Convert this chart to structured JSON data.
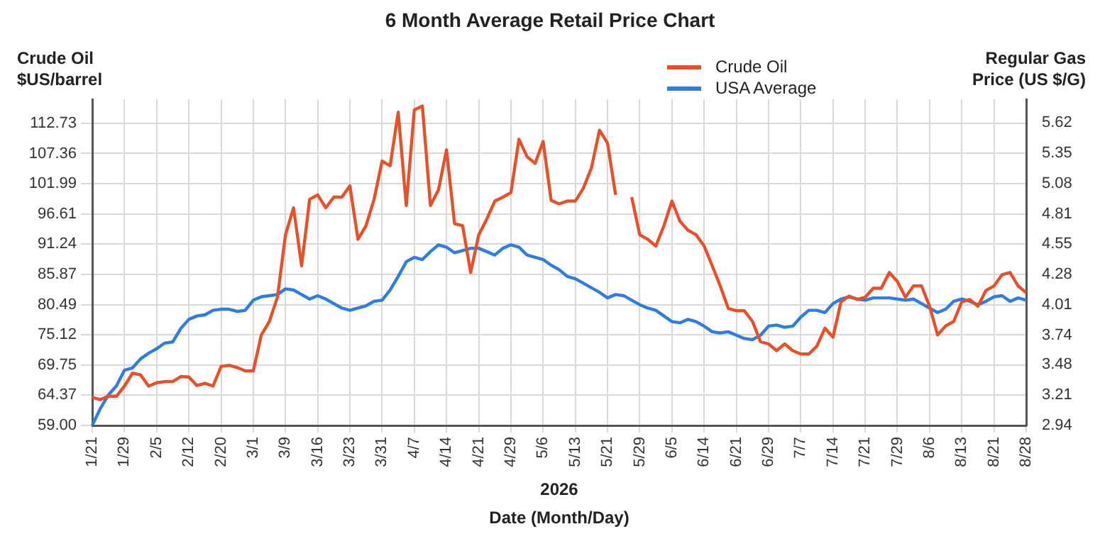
{
  "chart_data": {
    "type": "line",
    "title": "6 Month Average Retail Price Chart",
    "xlabel": "Date (Month/Day)",
    "ylabel": "Crude Oil $US/barrel",
    "y2label": "Regular Gas Price (US $/G)",
    "annotations": [
      "2026"
    ],
    "categories": [
      "1/21",
      null,
      null,
      null,
      "1/29",
      null,
      null,
      null,
      "2/5",
      null,
      null,
      null,
      "2/12",
      null,
      null,
      null,
      "2/20",
      null,
      null,
      null,
      "3/1",
      null,
      null,
      null,
      "3/9",
      null,
      null,
      null,
      "3/16",
      null,
      null,
      null,
      "3/23",
      null,
      null,
      null,
      "3/31",
      null,
      null,
      null,
      "4/7",
      null,
      null,
      null,
      "4/14",
      null,
      null,
      null,
      "4/21",
      null,
      null,
      null,
      "4/29",
      null,
      null,
      null,
      "5/6",
      null,
      null,
      null,
      "5/13",
      null,
      null,
      null,
      "5/21",
      null,
      null,
      null,
      "5/29",
      null,
      null,
      null,
      "6/5",
      null,
      null,
      null,
      "6/14",
      null,
      null,
      null,
      "6/21",
      null,
      null,
      null,
      "6/29",
      null,
      null,
      null,
      "7/7",
      null,
      null,
      null,
      "7/14",
      null,
      null,
      null,
      "7/21",
      null,
      null,
      null,
      "7/29",
      null,
      null,
      null,
      "8/6",
      null,
      null,
      null,
      "8/13",
      null,
      null,
      null,
      "8/21",
      null,
      null,
      null,
      "8/28"
    ],
    "series": [
      {
        "name": "Crude Oil",
        "color": "#e8502a",
        "axis": "y",
        "values": [
          64.0,
          63.6,
          64.2,
          64.2,
          66.0,
          68.3,
          68.0,
          66.0,
          66.6,
          66.8,
          66.8,
          67.7,
          67.6,
          66.1,
          66.5,
          66.0,
          69.5,
          69.7,
          69.3,
          68.7,
          68.7,
          75.1,
          77.5,
          81.8,
          92.9,
          97.7,
          87.4,
          99.2,
          100.0,
          97.7,
          99.6,
          99.6,
          101.6,
          92.1,
          94.5,
          99.2,
          106.0,
          105.2,
          114.7,
          98.1,
          115.1,
          115.8,
          98.1,
          100.9,
          108.0,
          94.9,
          94.5,
          86.2,
          92.9,
          95.7,
          98.9,
          99.6,
          100.4,
          109.9,
          106.8,
          105.6,
          109.5,
          99.0,
          98.4,
          98.9,
          98.9,
          101.2,
          104.8,
          111.5,
          109.2,
          100.0,
          null,
          99.6,
          92.9,
          92.1,
          90.9,
          94.5,
          98.9,
          95.3,
          93.7,
          92.9,
          90.9,
          87.4,
          83.8,
          79.8,
          79.4,
          79.4,
          77.5,
          73.9,
          73.5,
          72.3,
          73.5,
          72.3,
          71.7,
          71.7,
          73.1,
          76.3,
          74.7,
          81.0,
          82.0,
          81.4,
          81.8,
          83.4,
          83.4,
          86.2,
          84.6,
          81.8,
          83.8,
          83.8,
          80.2,
          75.1,
          76.7,
          77.5,
          81.0,
          81.4,
          80.2,
          83.0,
          83.8,
          85.8,
          86.2,
          83.8,
          82.6
        ]
      },
      {
        "name": "USA Average",
        "color": "#2f7de1",
        "axis": "y2",
        "values": [
          2.94,
          3.09,
          3.21,
          3.29,
          3.43,
          3.45,
          3.53,
          3.58,
          3.62,
          3.67,
          3.68,
          3.8,
          3.88,
          3.91,
          3.92,
          3.96,
          3.97,
          3.97,
          3.95,
          3.96,
          4.05,
          4.08,
          4.09,
          4.1,
          4.15,
          4.14,
          4.1,
          4.06,
          4.09,
          4.06,
          4.02,
          3.98,
          3.96,
          3.98,
          4.0,
          4.04,
          4.05,
          4.14,
          4.26,
          4.39,
          4.43,
          4.41,
          4.48,
          4.54,
          4.52,
          4.47,
          4.49,
          4.51,
          4.51,
          4.48,
          4.45,
          4.51,
          4.54,
          4.52,
          4.45,
          4.43,
          4.41,
          4.36,
          4.32,
          4.26,
          4.24,
          4.2,
          4.16,
          4.12,
          4.07,
          4.1,
          4.09,
          4.05,
          4.01,
          3.98,
          3.96,
          3.91,
          3.86,
          3.85,
          3.88,
          3.86,
          3.82,
          3.77,
          3.76,
          3.77,
          3.74,
          3.71,
          3.7,
          3.74,
          3.82,
          3.83,
          3.81,
          3.82,
          3.9,
          3.96,
          3.96,
          3.94,
          4.02,
          4.06,
          4.08,
          4.06,
          4.05,
          4.07,
          4.07,
          4.07,
          4.06,
          4.05,
          4.06,
          4.02,
          3.98,
          3.94,
          3.97,
          4.04,
          4.06,
          4.04,
          4.01,
          4.04,
          4.08,
          4.09,
          4.04,
          4.07,
          4.05
        ]
      }
    ],
    "ylim": [
      59,
      117
    ],
    "yticks": [
      {
        "value": 59,
        "label": "59.00"
      },
      64.37,
      69.75,
      75.12,
      80.49,
      85.87,
      91.24,
      96.61,
      101.99,
      107.36,
      112.73
    ],
    "y2lim": [
      2.94,
      5.83
    ],
    "y2ticks": [
      2.94,
      3.21,
      3.48,
      3.74,
      4.01,
      4.28,
      4.55,
      4.81,
      5.08,
      5.35,
      5.62
    ],
    "grid": true,
    "legend": "top right",
    "marker": "none",
    "line_style": "solid"
  }
}
